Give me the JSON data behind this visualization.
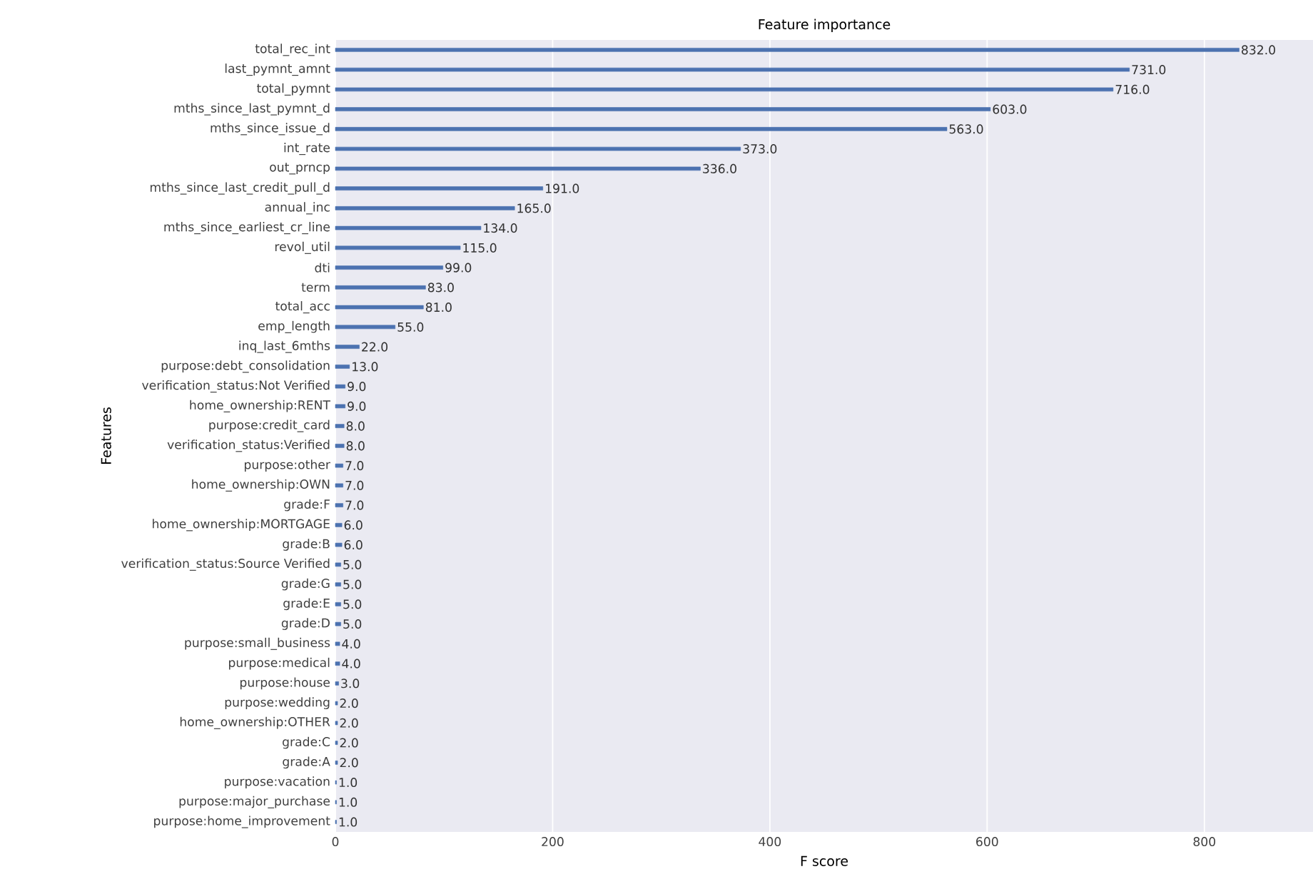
{
  "chart_data": {
    "type": "bar",
    "orientation": "horizontal",
    "title": "Feature importance",
    "xlabel": "F score",
    "ylabel": "Features",
    "categories": [
      "total_rec_int",
      "last_pymnt_amnt",
      "total_pymnt",
      "mths_since_last_pymnt_d",
      "mths_since_issue_d",
      "int_rate",
      "out_prncp",
      "mths_since_last_credit_pull_d",
      "annual_inc",
      "mths_since_earliest_cr_line",
      "revol_util",
      "dti",
      "term",
      "total_acc",
      "emp_length",
      "inq_last_6mths",
      "purpose:debt_consolidation",
      "verification_status:Not Verified",
      "home_ownership:RENT",
      "purpose:credit_card",
      "verification_status:Verified",
      "purpose:other",
      "home_ownership:OWN",
      "grade:F",
      "home_ownership:MORTGAGE",
      "grade:B",
      "verification_status:Source Verified",
      "grade:G",
      "grade:E",
      "grade:D",
      "purpose:small_business",
      "purpose:medical",
      "purpose:house",
      "purpose:wedding",
      "home_ownership:OTHER",
      "grade:C",
      "grade:A",
      "purpose:vacation",
      "purpose:major_purchase",
      "purpose:home_improvement"
    ],
    "values": [
      832,
      731,
      716,
      603,
      563,
      373,
      336,
      191,
      165,
      134,
      115,
      99,
      83,
      81,
      55,
      22,
      13,
      9,
      9,
      8,
      8,
      7,
      7,
      7,
      6,
      6,
      5,
      5,
      5,
      5,
      4,
      4,
      3,
      2,
      2,
      2,
      2,
      1,
      1,
      1
    ],
    "value_labels": [
      "832.0",
      "731.0",
      "716.0",
      "603.0",
      "563.0",
      "373.0",
      "336.0",
      "191.0",
      "165.0",
      "134.0",
      "115.0",
      "99.0",
      "83.0",
      "81.0",
      "55.0",
      "22.0",
      "13.0",
      "9.0",
      "9.0",
      "8.0",
      "8.0",
      "7.0",
      "7.0",
      "7.0",
      "6.0",
      "6.0",
      "5.0",
      "5.0",
      "5.0",
      "5.0",
      "4.0",
      "4.0",
      "3.0",
      "2.0",
      "2.0",
      "2.0",
      "2.0",
      "1.0",
      "1.0",
      "1.0"
    ],
    "color": "#4c72b0",
    "xlim": [
      0,
      900
    ],
    "xticks": [
      0,
      200,
      400,
      600,
      800
    ],
    "grid": "x"
  }
}
